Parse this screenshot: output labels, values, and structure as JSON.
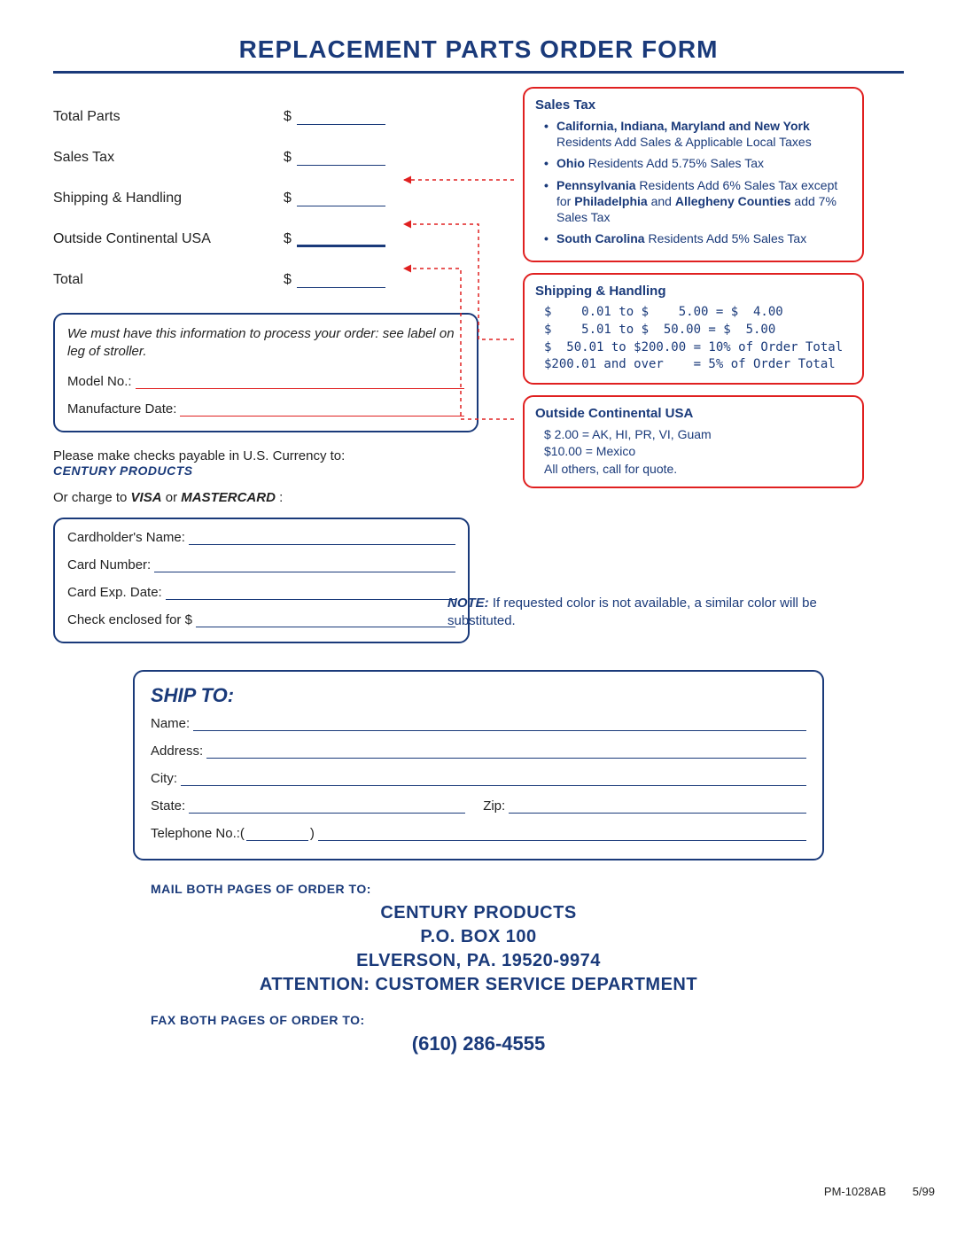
{
  "title": "REPLACEMENT PARTS ORDER FORM",
  "costs": {
    "total_parts_label": "Total Parts",
    "sales_tax_label": "Sales Tax",
    "shipping_label": "Shipping & Handling",
    "outside_label": "Outside Continental USA",
    "total_label": "Total",
    "currency": "$"
  },
  "sales_tax_box": {
    "title": "Sales Tax",
    "items_html": [
      "<b>California, Indiana, Maryland and New York</b> Residents Add Sales & Applicable Local Taxes",
      "<b>Ohio</b> Residents Add 5.75% Sales Tax",
      "<b>Pennsylvania</b> Residents Add 6% Sales Tax except for <b>Philadelphia</b> and <b>Allegheny Counties</b> add 7% Sales Tax",
      "<b>South Carolina</b> Residents Add 5% Sales Tax"
    ]
  },
  "shipping_box": {
    "title": "Shipping & Handling",
    "lines": [
      "$    0.01 to $    5.00 = $  4.00",
      "$    5.01 to $  50.00 = $  5.00",
      "$  50.01 to $200.00 = 10% of Order Total",
      "$200.01 and over    = 5% of Order Total"
    ]
  },
  "outside_box": {
    "title": "Outside Continental USA",
    "lines": [
      "$ 2.00 = AK, HI, PR, VI, Guam",
      "$10.00 = Mexico",
      " All others, call for quote."
    ]
  },
  "model_box": {
    "instruction": "We must have this information to process your order:  see label on leg of stroller.",
    "model_label": "Model No.:",
    "mfg_label": "Manufacture Date:"
  },
  "payable": {
    "line1": "Please make checks payable in U.S. Currency to:",
    "company": "CENTURY PRODUCTS",
    "charge_html": "Or charge to <b><i>VISA</i></b> or <b><i>MASTERCARD</i></b> :"
  },
  "note": {
    "label": "NOTE:",
    "text": "  If requested color is not available, a similar color will be substituted."
  },
  "payment_box": {
    "cardholder": "Cardholder's Name:",
    "card_number": "Card Number:",
    "exp": "Card Exp. Date:",
    "check": "Check enclosed for $"
  },
  "ship_to": {
    "title": "SHIP TO:",
    "name": "Name:",
    "address": "Address:",
    "city": "City:",
    "state": "State:",
    "zip": "Zip:",
    "phone": "Telephone No.:"
  },
  "footer": {
    "mail_label": "MAIL BOTH PAGES OF ORDER TO:",
    "addr1": "CENTURY PRODUCTS",
    "addr2": "P.O. BOX 100",
    "addr3": "ELVERSON, PA. 19520-9974",
    "addr4": "ATTENTION:  CUSTOMER SERVICE DEPARTMENT",
    "fax_label": "FAX BOTH PAGES OF ORDER TO:",
    "phone": "(610) 286-4555"
  },
  "doc": {
    "id": "PM-1028AB",
    "date": "5/99"
  },
  "colors": {
    "primary_blue": "#1a3a7a",
    "red": "#e02020",
    "text": "#222222",
    "background": "#ffffff"
  }
}
